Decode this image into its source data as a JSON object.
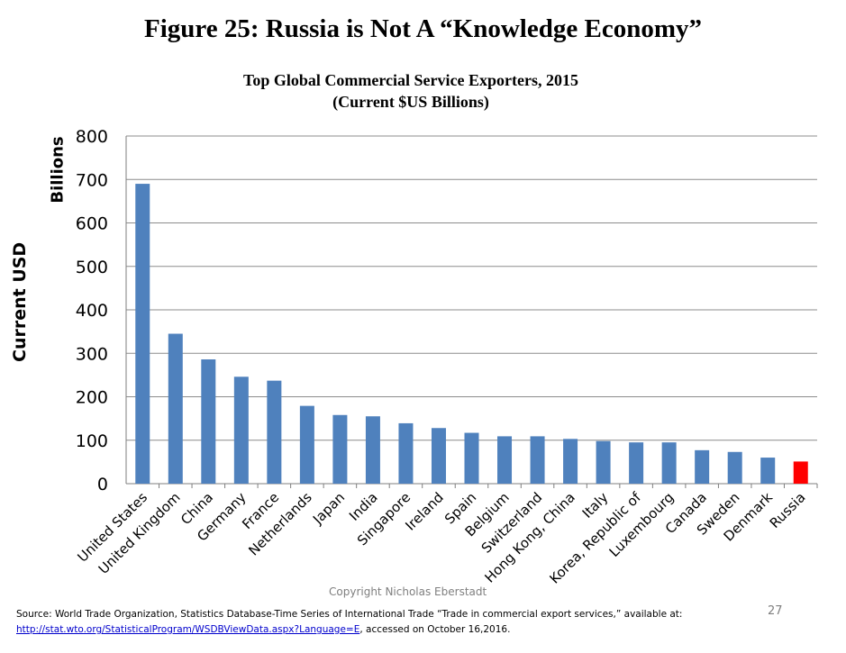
{
  "figure_title": "Figure 25: Russia is Not A “Knowledge Economy”",
  "chart_data": {
    "type": "bar",
    "title": "Top Global Commercial Service Exporters, 2015",
    "subtitle": "(Current $US Billions)",
    "ylabel": "Current USD",
    "ylabel_unit": "Billions",
    "ylim": [
      0,
      800
    ],
    "yticks": [
      "0",
      "100",
      "200",
      "300",
      "400",
      "500",
      "600",
      "700",
      "800"
    ],
    "grid": true,
    "categories": [
      "United States",
      "United Kingdom",
      "China",
      "Germany",
      "France",
      "Netherlands",
      "Japan",
      "India",
      "Singapore",
      "Ireland",
      "Spain",
      "Belgium",
      "Switzerland",
      "Hong Kong, China",
      "Italy",
      "Korea, Republic of",
      "Luxembourg",
      "Canada",
      "Sweden",
      "Denmark",
      "Russia"
    ],
    "values": [
      690,
      345,
      286,
      246,
      237,
      179,
      158,
      155,
      139,
      128,
      117,
      109,
      109,
      103,
      98,
      95,
      95,
      77,
      73,
      60,
      51
    ],
    "bar_color": "#4F81BD",
    "highlight_category": "Russia",
    "highlight_color": "#FF0000"
  },
  "copyright": "Copyright Nicholas Eberstadt",
  "page_number": "27",
  "source": {
    "prefix": "Source: World Trade Organization, Statistics Database-Time Series of International Trade “Trade in commercial export services,” available at:",
    "link_text": "http://stat.wto.org/StatisticalProgram/WSDBViewData.aspx?Language=E",
    "suffix": ", accessed on October 16,2016."
  }
}
